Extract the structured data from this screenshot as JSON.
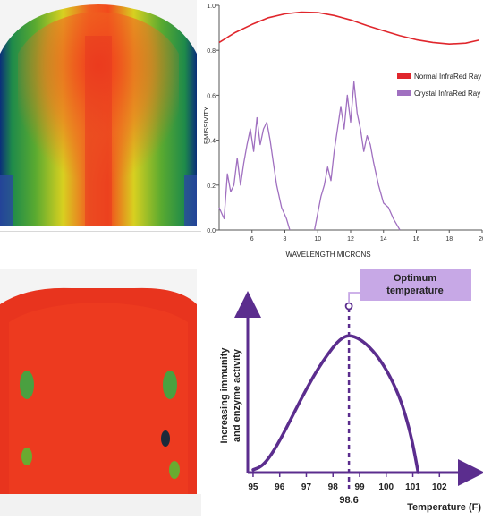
{
  "chart_data": [
    {
      "type": "line",
      "title": "",
      "xlabel": "WAVELENGTH MICRONS",
      "ylabel": "EMISSIVITY",
      "xlim": [
        4,
        20
      ],
      "ylim": [
        0,
        1.0
      ],
      "x_ticks": [
        "6",
        "8",
        "10",
        "12",
        "14",
        "16",
        "18",
        "20"
      ],
      "y_ticks": [
        "0.0",
        "0.2",
        "0.4",
        "0.6",
        "0.8",
        "1.0"
      ],
      "legend_position": "right",
      "series": [
        {
          "name": "Normal InfraRed Ray",
          "color": "#e0262c",
          "segments": [
            [
              [
                4,
                0.835
              ],
              [
                5,
                0.88
              ],
              [
                6,
                0.915
              ],
              [
                7,
                0.945
              ],
              [
                8,
                0.962
              ],
              [
                9,
                0.97
              ],
              [
                10,
                0.968
              ],
              [
                11,
                0.955
              ],
              [
                12,
                0.935
              ],
              [
                13,
                0.91
              ],
              [
                14,
                0.887
              ],
              [
                15,
                0.865
              ],
              [
                16,
                0.847
              ],
              [
                17,
                0.835
              ],
              [
                18,
                0.828
              ],
              [
                19,
                0.832
              ],
              [
                19.8,
                0.845
              ]
            ]
          ]
        },
        {
          "name": "Crystal InfraRed Ray",
          "color": "#a070c0",
          "segments": [
            [
              [
                4,
                0.1
              ],
              [
                4.3,
                0.05
              ],
              [
                4.5,
                0.25
              ],
              [
                4.7,
                0.17
              ],
              [
                4.9,
                0.2
              ],
              [
                5.1,
                0.32
              ],
              [
                5.3,
                0.2
              ],
              [
                5.5,
                0.3
              ],
              [
                5.7,
                0.38
              ],
              [
                5.9,
                0.45
              ],
              [
                6.1,
                0.35
              ],
              [
                6.3,
                0.5
              ],
              [
                6.5,
                0.38
              ],
              [
                6.7,
                0.45
              ],
              [
                6.9,
                0.48
              ],
              [
                7.1,
                0.4
              ],
              [
                7.3,
                0.3
              ],
              [
                7.5,
                0.2
              ],
              [
                7.8,
                0.1
              ],
              [
                8.1,
                0.05
              ],
              [
                8.3,
                0
              ]
            ],
            [
              [
                9.8,
                0
              ],
              [
                10.2,
                0.15
              ],
              [
                10.4,
                0.2
              ],
              [
                10.6,
                0.28
              ],
              [
                10.8,
                0.22
              ],
              [
                11.0,
                0.35
              ],
              [
                11.2,
                0.45
              ],
              [
                11.4,
                0.55
              ],
              [
                11.6,
                0.45
              ],
              [
                11.8,
                0.6
              ],
              [
                12.0,
                0.48
              ],
              [
                12.2,
                0.66
              ],
              [
                12.4,
                0.52
              ],
              [
                12.6,
                0.45
              ],
              [
                12.8,
                0.35
              ],
              [
                13.0,
                0.42
              ],
              [
                13.2,
                0.38
              ],
              [
                13.4,
                0.3
              ],
              [
                13.7,
                0.2
              ],
              [
                14.0,
                0.12
              ],
              [
                14.3,
                0.1
              ],
              [
                14.6,
                0.05
              ],
              [
                15.0,
                0
              ]
            ]
          ]
        }
      ]
    },
    {
      "type": "line",
      "title": "",
      "xlabel": "Temperature (F)",
      "ylabel": "Increasing immunity and enzyme activity",
      "xlim": [
        94.8,
        103.2
      ],
      "x_ticks": [
        "95",
        "96",
        "97",
        "98",
        "99",
        "100",
        "101",
        "102"
      ],
      "annotation": "Optimum temperature",
      "marker_label": "98.6",
      "marker_x": 98.6,
      "color": "#5b2d8e",
      "callout_color": "#c7a8e6",
      "series": [
        {
          "name": "",
          "points": [
            [
              95,
              0.02
            ],
            [
              95.3,
              0.04
            ],
            [
              95.6,
              0.1
            ],
            [
              96,
              0.22
            ],
            [
              96.5,
              0.4
            ],
            [
              97,
              0.58
            ],
            [
              97.5,
              0.74
            ],
            [
              98,
              0.87
            ],
            [
              98.3,
              0.93
            ],
            [
              98.6,
              0.955
            ],
            [
              99,
              0.93
            ],
            [
              99.5,
              0.85
            ],
            [
              100,
              0.72
            ],
            [
              100.5,
              0.53
            ],
            [
              100.8,
              0.35
            ],
            [
              101,
              0.2
            ],
            [
              101.2,
              0
            ]
          ]
        }
      ]
    }
  ]
}
